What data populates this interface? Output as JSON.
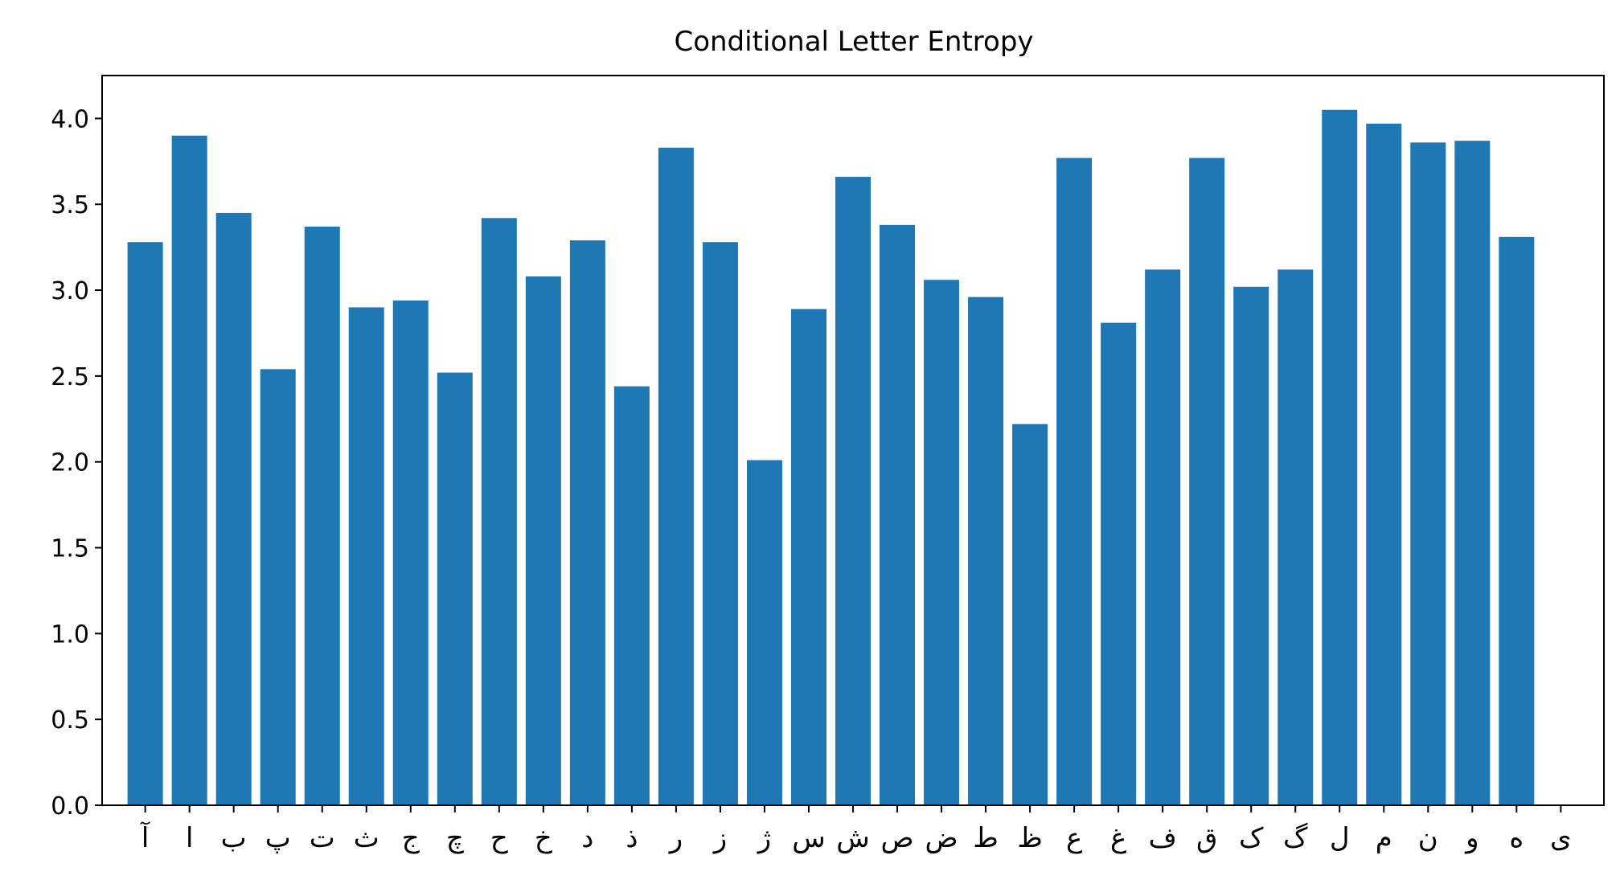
{
  "chart_data": {
    "type": "bar",
    "title": "Conditional Letter Entropy",
    "xlabel": "",
    "ylabel": "",
    "categories": [
      "آ",
      "ا",
      "ب",
      "پ",
      "ت",
      "ث",
      "ج",
      "چ",
      "ح",
      "خ",
      "د",
      "ذ",
      "ر",
      "ز",
      "ژ",
      "س",
      "ش",
      "ص",
      "ض",
      "ط",
      "ظ",
      "ع",
      "غ",
      "ف",
      "ق",
      "ک",
      "گ",
      "ل",
      "م",
      "ن",
      "و",
      "ه",
      "ی"
    ],
    "values": [
      3.28,
      3.9,
      3.45,
      2.54,
      3.37,
      2.9,
      2.94,
      2.52,
      3.42,
      3.08,
      3.29,
      2.44,
      3.83,
      3.28,
      2.01,
      2.89,
      3.66,
      3.38,
      3.06,
      2.96,
      2.22,
      3.77,
      2.81,
      3.12,
      3.77,
      3.02,
      3.12,
      4.05,
      3.97,
      3.86,
      3.87,
      3.31,
      0
    ],
    "ylim": [
      0,
      4.25
    ],
    "yticks": [
      0.0,
      0.5,
      1.0,
      1.5,
      2.0,
      2.5,
      3.0,
      3.5,
      4.0
    ],
    "ytick_labels": [
      "0.0",
      "0.5",
      "1.0",
      "1.5",
      "2.0",
      "2.5",
      "3.0",
      "3.5",
      "4.0"
    ],
    "bar_color": "#1f77b4",
    "grid": false,
    "legend": "none"
  }
}
